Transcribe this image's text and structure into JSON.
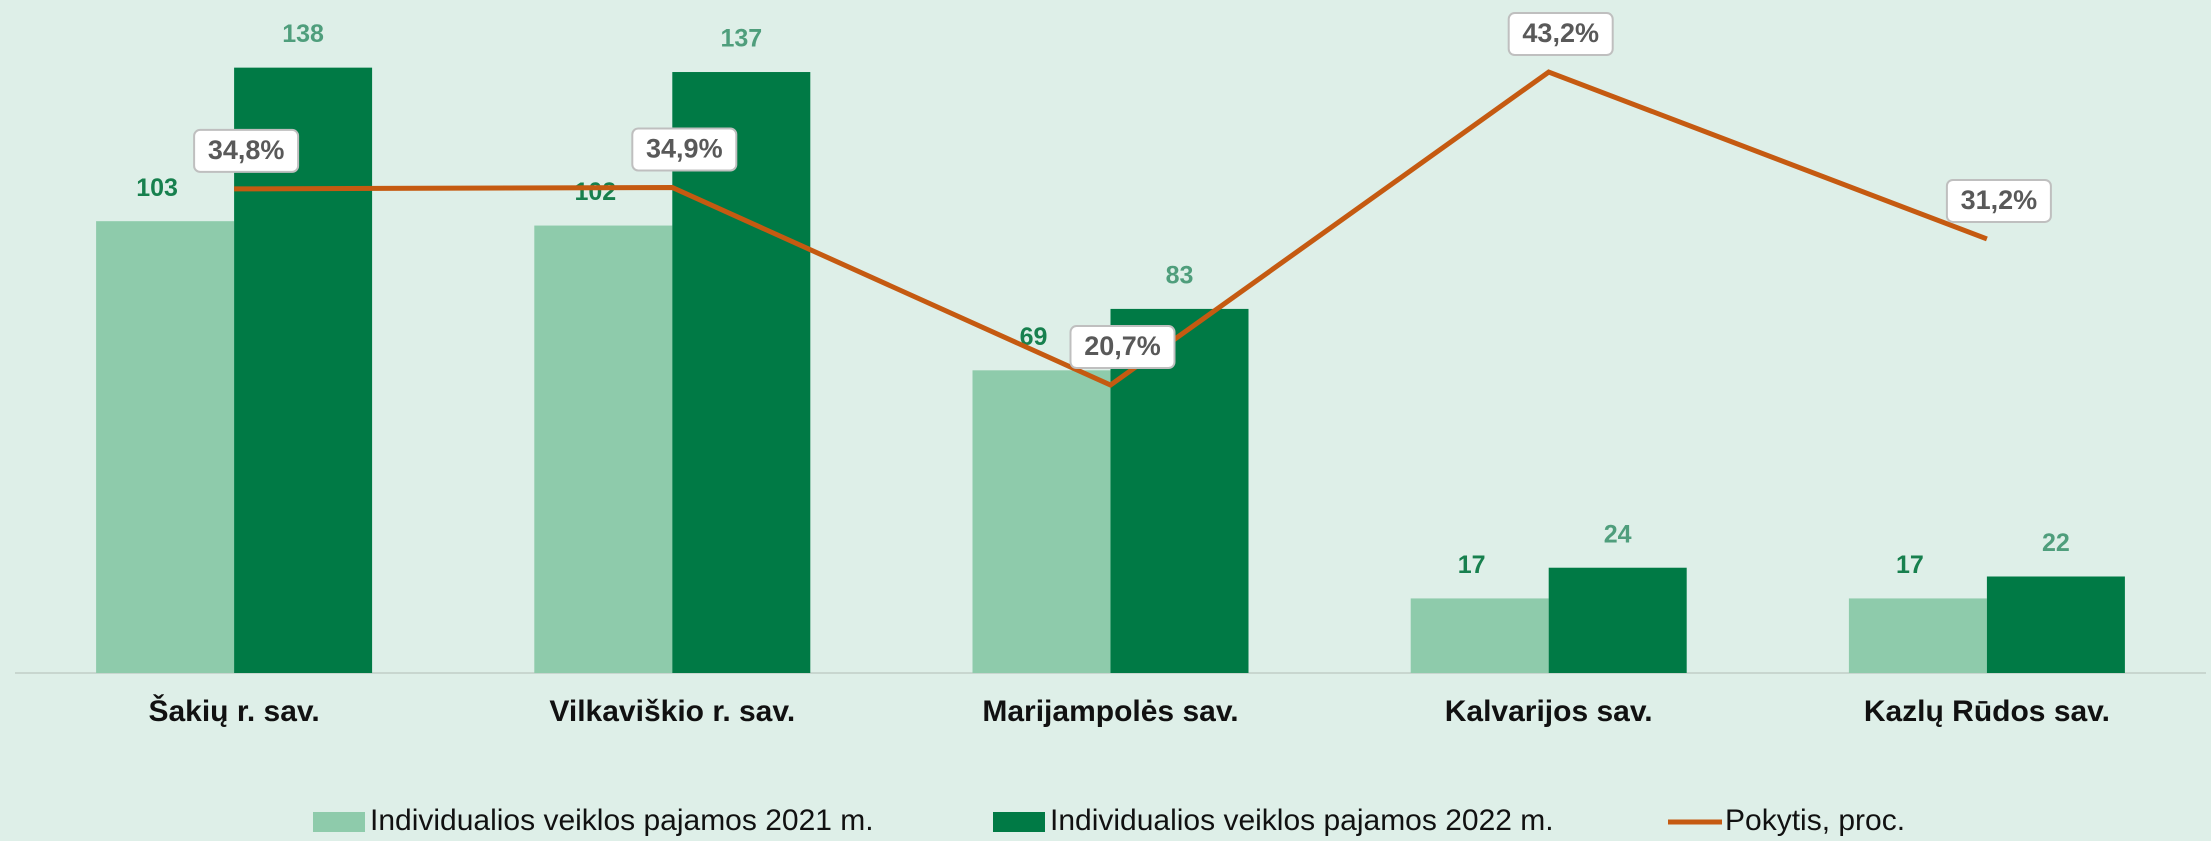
{
  "chart_data": {
    "type": "bar",
    "categories": [
      "Šakių r. sav.",
      "Vilkaviškio r. sav.",
      "Marijampolės sav.",
      "Kalvarijos sav.",
      "Kazlų Rūdos sav."
    ],
    "series": [
      {
        "name": "Individualios veiklos pajamos 2021 m.",
        "color": "#8ecbab",
        "label_color": "#17804e",
        "values": [
          103,
          102,
          69,
          17,
          17
        ]
      },
      {
        "name": "Individualios veiklos pajamos 2022 m.",
        "color": "#007a45",
        "label_color": "#4f9e7c",
        "values": [
          138,
          137,
          83,
          24,
          22
        ]
      },
      {
        "name": "Pokytis, proc.",
        "type": "line",
        "axis": "y2",
        "color": "#c55a11",
        "values": [
          34.8,
          34.9,
          20.7,
          43.2,
          31.2
        ],
        "value_labels": [
          "34,8%",
          "34,9%",
          "20,7%",
          "43,2%",
          "31,2%"
        ]
      }
    ],
    "ylim": [
      0,
      150
    ],
    "y2lim": [
      0,
      47.3
    ],
    "legend": "bottom"
  }
}
